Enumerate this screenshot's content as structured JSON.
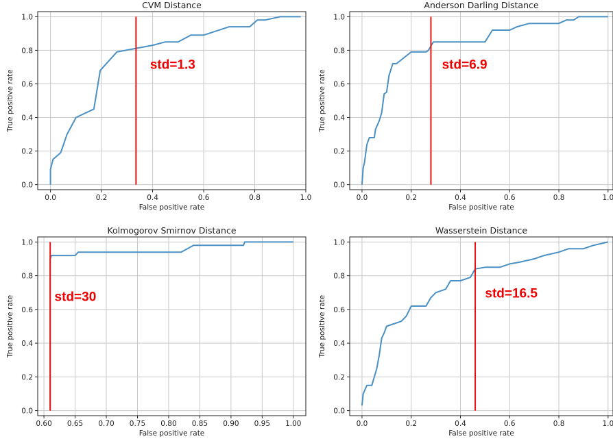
{
  "chart_data": [
    {
      "type": "line",
      "title": "CVM Distance",
      "xlabel": "False positive rate",
      "ylabel": "True positive rate",
      "xlim": [
        -0.05,
        1.0
      ],
      "ylim": [
        -0.03,
        1.03
      ],
      "xticks": [
        0.0,
        0.2,
        0.4,
        0.6,
        0.8,
        1.0
      ],
      "xtick_labels": [
        "0.0",
        "0.2",
        "0.4",
        "0.6",
        "0.8",
        "1.0"
      ],
      "yticks": [
        0.0,
        0.2,
        0.4,
        0.6,
        0.8,
        1.0
      ],
      "ytick_labels": [
        "0.0",
        "0.2",
        "0.4",
        "0.6",
        "0.8",
        "1.0"
      ],
      "grid": true,
      "series": [
        {
          "color": "#4a90c4",
          "x": [
            0.0,
            0.0,
            0.01,
            0.04,
            0.065,
            0.1,
            0.17,
            0.195,
            0.26,
            0.33,
            0.4,
            0.45,
            0.5,
            0.55,
            0.6,
            0.7,
            0.78,
            0.81,
            0.84,
            0.9,
            0.98
          ],
          "y": [
            0.0,
            0.09,
            0.15,
            0.19,
            0.3,
            0.4,
            0.45,
            0.68,
            0.79,
            0.81,
            0.83,
            0.85,
            0.85,
            0.89,
            0.89,
            0.94,
            0.94,
            0.98,
            0.98,
            1.0,
            1.0
          ]
        }
      ],
      "vline": {
        "x": 0.335,
        "color": "#ee1111"
      },
      "annotation": {
        "text": "std=1.3",
        "x": 0.39,
        "y": 0.69,
        "color": "#ee0000"
      }
    },
    {
      "type": "line",
      "title": "Anderson Darling Distance",
      "xlabel": "False positive rate",
      "ylabel": "True positive rate",
      "xlim": [
        -0.05,
        1.02
      ],
      "ylim": [
        -0.03,
        1.03
      ],
      "xticks": [
        0.0,
        0.2,
        0.4,
        0.6,
        0.8,
        1.0
      ],
      "xtick_labels": [
        "0.0",
        "0.2",
        "0.4",
        "0.6",
        "0.8",
        "1.0"
      ],
      "yticks": [
        0.0,
        0.2,
        0.4,
        0.6,
        0.8,
        1.0
      ],
      "ytick_labels": [
        "0.0",
        "0.2",
        "0.4",
        "0.6",
        "0.8",
        "1.0"
      ],
      "grid": true,
      "series": [
        {
          "color": "#4a90c4",
          "x": [
            0.0,
            0.005,
            0.01,
            0.02,
            0.03,
            0.05,
            0.055,
            0.07,
            0.08,
            0.09,
            0.1,
            0.11,
            0.125,
            0.14,
            0.2,
            0.26,
            0.27,
            0.29,
            0.5,
            0.53,
            0.6,
            0.63,
            0.68,
            0.8,
            0.83,
            0.86,
            0.88,
            1.0
          ],
          "y": [
            0.0,
            0.1,
            0.13,
            0.24,
            0.28,
            0.28,
            0.33,
            0.38,
            0.43,
            0.54,
            0.55,
            0.65,
            0.72,
            0.72,
            0.79,
            0.79,
            0.8,
            0.85,
            0.85,
            0.92,
            0.92,
            0.94,
            0.96,
            0.96,
            0.98,
            0.98,
            1.0,
            1.0
          ]
        }
      ],
      "vline": {
        "x": 0.28,
        "color": "#ee1111"
      },
      "annotation": {
        "text": "std=6.9",
        "x": 0.325,
        "y": 0.69,
        "color": "#ee0000"
      }
    },
    {
      "type": "line",
      "title": "Kolmogorov Smirnov Distance",
      "xlabel": "False positive rate",
      "ylabel": "True positive rate",
      "xlim": [
        0.59,
        1.02
      ],
      "ylim": [
        -0.03,
        1.03
      ],
      "xticks": [
        0.6,
        0.65,
        0.7,
        0.75,
        0.8,
        0.85,
        0.9,
        0.95,
        1.0
      ],
      "xtick_labels": [
        "0.60",
        "0.65",
        "0.70",
        "0.75",
        "0.80",
        "0.85",
        "0.90",
        "0.95",
        "1.00"
      ],
      "yticks": [
        0.0,
        0.2,
        0.4,
        0.6,
        0.8,
        1.0
      ],
      "ytick_labels": [
        "0.0",
        "0.2",
        "0.4",
        "0.6",
        "0.8",
        "1.0"
      ],
      "grid": true,
      "series": [
        {
          "color": "#4a90c4",
          "x": [
            0.61,
            0.61,
            0.612,
            0.65,
            0.655,
            0.82,
            0.83,
            0.84,
            0.92,
            0.922,
            1.0
          ],
          "y": [
            0.0,
            0.9,
            0.92,
            0.92,
            0.94,
            0.94,
            0.96,
            0.98,
            0.98,
            1.0,
            1.0
          ]
        }
      ],
      "vline": {
        "x": 0.61,
        "color": "#ee1111"
      },
      "annotation": {
        "text": "std=30",
        "x": 0.617,
        "y": 0.65,
        "color": "#ee0000"
      }
    },
    {
      "type": "line",
      "title": "Wasserstein Distance",
      "xlabel": "False positive rate",
      "ylabel": "True positive rate",
      "xlim": [
        -0.05,
        1.02
      ],
      "ylim": [
        -0.03,
        1.03
      ],
      "xticks": [
        0.0,
        0.2,
        0.4,
        0.6,
        0.8,
        1.0
      ],
      "xtick_labels": [
        "0.0",
        "0.2",
        "0.4",
        "0.6",
        "0.8",
        "1.0"
      ],
      "yticks": [
        0.0,
        0.2,
        0.4,
        0.6,
        0.8,
        1.0
      ],
      "ytick_labels": [
        "0.0",
        "0.2",
        "0.4",
        "0.6",
        "0.8",
        "1.0"
      ],
      "grid": true,
      "series": [
        {
          "color": "#4a90c4",
          "x": [
            0.0,
            0.005,
            0.02,
            0.04,
            0.05,
            0.06,
            0.07,
            0.08,
            0.09,
            0.1,
            0.12,
            0.16,
            0.18,
            0.2,
            0.26,
            0.28,
            0.3,
            0.34,
            0.36,
            0.4,
            0.44,
            0.46,
            0.5,
            0.56,
            0.6,
            0.64,
            0.7,
            0.74,
            0.8,
            0.84,
            0.9,
            0.94,
            1.0
          ],
          "y": [
            0.03,
            0.1,
            0.15,
            0.15,
            0.2,
            0.25,
            0.33,
            0.43,
            0.46,
            0.5,
            0.51,
            0.53,
            0.56,
            0.62,
            0.62,
            0.67,
            0.7,
            0.72,
            0.77,
            0.77,
            0.79,
            0.84,
            0.85,
            0.85,
            0.87,
            0.88,
            0.9,
            0.92,
            0.94,
            0.96,
            0.96,
            0.98,
            1.0
          ]
        }
      ],
      "vline": {
        "x": 0.46,
        "color": "#ee1111"
      },
      "annotation": {
        "text": "std=16.5",
        "x": 0.5,
        "y": 0.67,
        "color": "#ee0000"
      }
    }
  ]
}
